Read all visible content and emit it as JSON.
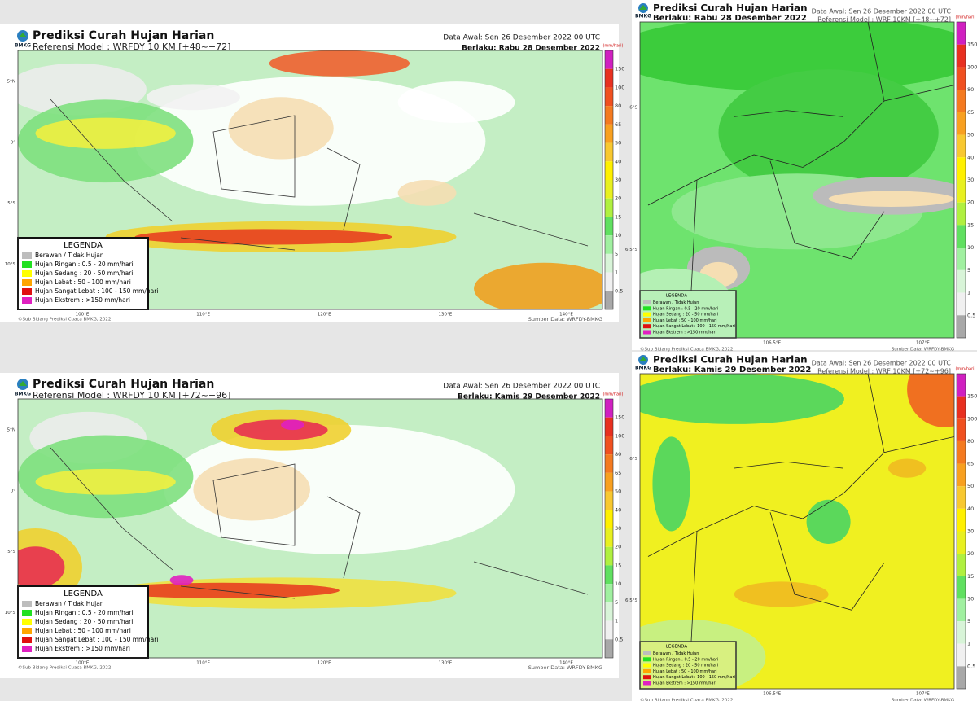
{
  "panels": [
    {
      "title": "Prediksi Curah Hujan Harian",
      "logo": "BMKG",
      "model": "Referensi Model : WRFDY 10 KM [+48~+72]",
      "data_awal": "Data Awal: Sen 26 Desember 2022 00 UTC",
      "berlaku": "Berlaku: Rabu 28 Desember 2022",
      "unit": "(mm/hari)",
      "scale": [
        "150",
        "100",
        "80",
        "65",
        "50",
        "40",
        "30",
        "20",
        "15",
        "10",
        "5",
        "1",
        "0.5"
      ],
      "lat_labels": [
        "5°N",
        "0°",
        "5°S",
        "10°S"
      ],
      "lon_labels": [
        "100°E",
        "110°E",
        "120°E",
        "130°E",
        "140°E"
      ],
      "legend_title": "LEGENDA",
      "legend": [
        "Berawan / Tidak Hujan",
        "Hujan Ringan : 0.5 - 20 mm/hari",
        "Hujan Sedang : 20 - 50 mm/hari",
        "Hujan Lebat : 50 - 100 mm/hari",
        "Hujan Sangat Lebat : 100 - 150 mm/hari",
        "Hujan Ekstrem : >150 mm/hari"
      ],
      "credit": "©Sub Bidang Prediksi Cuaca BMKG, 2022",
      "source": "Sumber Data: WRFDY-BMKG"
    },
    {
      "title": "Prediksi Curah Hujan Harian",
      "logo": "BMKG",
      "model": "Referensi Model : WRFDY 10 KM [+72~+96]",
      "data_awal": "Data Awal: Sen 26 Desember 2022 00 UTC",
      "berlaku": "Berlaku: Kamis 29 Desember 2022",
      "unit": "(mm/hari)",
      "scale": [
        "150",
        "100",
        "80",
        "65",
        "50",
        "40",
        "30",
        "20",
        "15",
        "10",
        "5",
        "1",
        "0.5"
      ],
      "lat_labels": [
        "5°N",
        "0°",
        "5°S",
        "10°S"
      ],
      "lon_labels": [
        "100°E",
        "110°E",
        "120°E",
        "130°E",
        "140°E"
      ],
      "legend_title": "LEGENDA",
      "legend": [
        "Berawan / Tidak Hujan",
        "Hujan Ringan : 0.5 - 20 mm/hari",
        "Hujan Sedang : 20 - 50 mm/hari",
        "Hujan Lebat : 50 - 100 mm/hari",
        "Hujan Sangat Lebat : 100 - 150 mm/hari",
        "Hujan Ekstrem : >150 mm/hari"
      ],
      "credit": "©Sub Bidang Prediksi Cuaca BMKG, 2022",
      "source": "Sumber Data: WRFDY-BMKG"
    },
    {
      "title": "Prediksi Curah Hujan Harian",
      "logo": "BMKG",
      "model": "Referensi Model : WRF 10KM [+48~+72]",
      "data_awal": "Data Awal: Sen 26 Desember 2022 00 UTC",
      "berlaku": "Berlaku: Rabu 28 Desember 2022",
      "unit": "(mm/hari)",
      "scale": [
        "150",
        "100",
        "80",
        "65",
        "50",
        "40",
        "30",
        "20",
        "15",
        "10",
        "5",
        "1",
        "0.5"
      ],
      "lat_labels": [
        "6°S",
        "6.5°S"
      ],
      "lon_labels": [
        "106.5°E",
        "107°E"
      ],
      "legend_title": "LEGENDA",
      "legend": [
        "Berawan / Tidak Hujan",
        "Hujan Ringan : 0.5 - 20 mm/hari",
        "Hujan Sedang : 20 - 50 mm/hari",
        "Hujan Lebat : 50 - 100 mm/hari",
        "Hujan Sangat Lebat : 100 - 150 mm/hari",
        "Hujan Ekstrem : >150 mm/hari"
      ],
      "credit": "©Sub Bidang Prediksi Cuaca BMKG, 2022",
      "source": "Sumber Data: WRFDY-BMKG"
    },
    {
      "title": "Prediksi Curah Hujan Harian",
      "logo": "BMKG",
      "model": "Referensi Model : WRF 10KM [+72~+96]",
      "data_awal": "Data Awal: Sen 26 Desember 2022 00 UTC",
      "berlaku": "Berlaku: Kamis 29 Desember 2022",
      "unit": "(mm/hari)",
      "scale": [
        "150",
        "100",
        "80",
        "65",
        "50",
        "40",
        "30",
        "20",
        "15",
        "10",
        "5",
        "1",
        "0.5"
      ],
      "lat_labels": [
        "6°S",
        "6.5°S"
      ],
      "lon_labels": [
        "106.5°E",
        "107°E"
      ],
      "legend_title": "LEGENDA",
      "legend": [
        "Berawan / Tidak Hujan",
        "Hujan Ringan : 0.5 - 20 mm/hari",
        "Hujan Sedang : 20 - 50 mm/hari",
        "Hujan Lebat : 50 - 100 mm/hari",
        "Hujan Sangat Lebat : 100 - 150 mm/hari",
        "Hujan Ekstrem : >150 mm/hari"
      ],
      "credit": "©Sub Bidang Prediksi Cuaca BMKG, 2022",
      "source": "Sumber Data: WRFDY-BMKG"
    }
  ]
}
